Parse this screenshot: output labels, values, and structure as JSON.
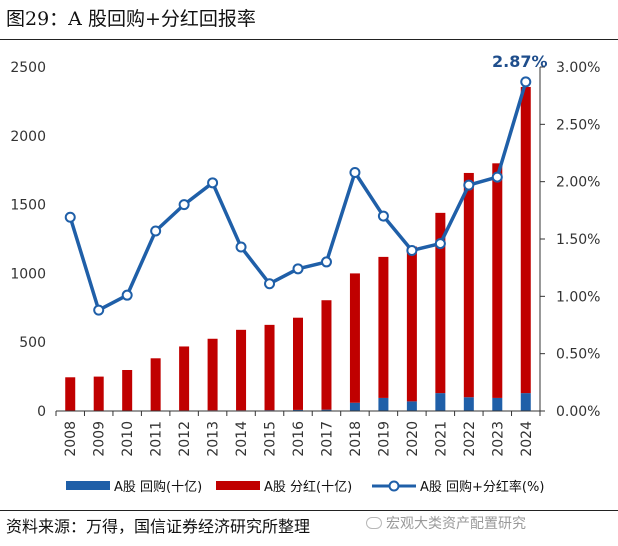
{
  "page": {
    "title": "图29：A 股回购+分红回报率",
    "source": "资料来源：万得，国信证券经济研究所整理",
    "watermark": "宏观大类资产配置研究"
  },
  "colors": {
    "buyback": "#1f5fa8",
    "dividend": "#c00000",
    "line": "#1f5fa8",
    "axis": "#333333"
  },
  "chart_data": {
    "type": "bar",
    "title": "A 股回购+分红回报率",
    "categories": [
      "2008",
      "2009",
      "2010",
      "2011",
      "2012",
      "2013",
      "2014",
      "2015",
      "2016",
      "2017",
      "2018",
      "2019",
      "2020",
      "2021",
      "2022",
      "2023",
      "2024"
    ],
    "series": [
      {
        "name": "A股 回购(十亿)",
        "kind": "bar",
        "axis": "left",
        "stack": "total",
        "values": [
          2,
          2,
          3,
          3,
          4,
          5,
          5,
          6,
          8,
          10,
          60,
          95,
          70,
          130,
          100,
          95,
          130
        ]
      },
      {
        "name": "A股 分红(十亿)",
        "kind": "bar",
        "axis": "left",
        "stack": "total",
        "values": [
          243,
          248,
          295,
          380,
          465,
          520,
          585,
          620,
          670,
          795,
          940,
          1025,
          1125,
          1310,
          1630,
          1705,
          2225
        ]
      },
      {
        "name": "A股 回购+分红率(%)",
        "kind": "line",
        "axis": "right",
        "values": [
          1.69,
          0.88,
          1.01,
          1.57,
          1.8,
          1.99,
          1.43,
          1.11,
          1.24,
          1.3,
          2.08,
          1.7,
          1.4,
          1.46,
          1.97,
          2.04,
          2.87
        ]
      }
    ],
    "left_axis": {
      "min": 0,
      "max": 2500,
      "ticks": [
        "0",
        "500",
        "1000",
        "1500",
        "2000",
        "2500"
      ]
    },
    "right_axis": {
      "min": 0,
      "max": 3.0,
      "ticks": [
        "0.00%",
        "0.50%",
        "1.00%",
        "1.50%",
        "2.00%",
        "2.50%",
        "3.00%"
      ]
    },
    "annotation": {
      "label": "2.87%",
      "category": "2024",
      "value": 2.87
    },
    "legend": {
      "position": "bottom",
      "items": [
        "A股 回购(十亿)",
        "A股 分红(十亿)",
        "A股 回购+分红率(%)"
      ]
    },
    "grid": false
  }
}
